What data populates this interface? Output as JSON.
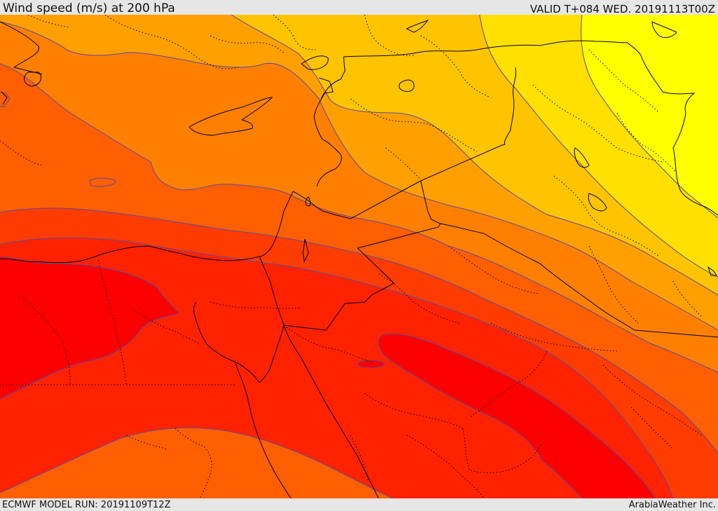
{
  "header": {
    "title": "Wind speed (m/s) at 200 hPa",
    "valid": "VALID T+084 WED. 20191113T00Z"
  },
  "footer": {
    "model_run": "ECMWF MODEL RUN: 20191109T12Z",
    "credit": "ArabiaWeather Inc."
  },
  "map": {
    "field": "wind speed",
    "level": "200 hPa",
    "unit": "m/s",
    "colors": {
      "band_1": "#ffff00",
      "band_2": "#ffe000",
      "band_3": "#ffc400",
      "band_4": "#ffa000",
      "band_5": "#ff8000",
      "band_6": "#ff5f00",
      "band_7": "#ff3c00",
      "band_8": "#ff2200",
      "band_9": "#fc0000",
      "contour_line": "#5a4aa0",
      "country_border": "#000000",
      "province_border": "#000000"
    }
  }
}
